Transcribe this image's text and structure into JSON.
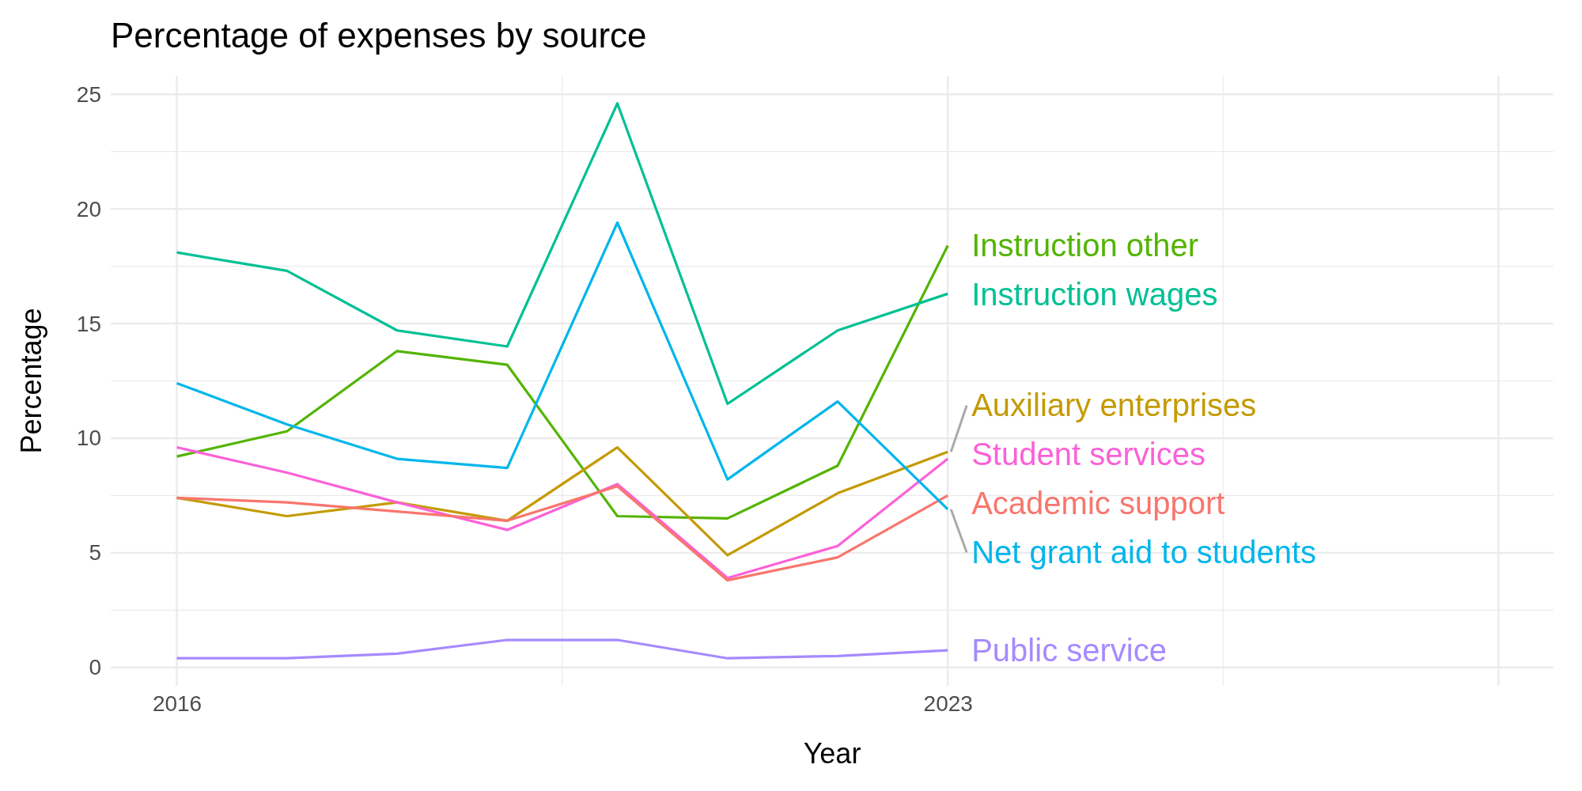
{
  "chart_data": {
    "type": "line",
    "title": "Percentage of expenses by source",
    "xlabel": "Year",
    "ylabel": "Percentage",
    "x": [
      2016,
      2017,
      2018,
      2019,
      2020,
      2021,
      2022,
      2023
    ],
    "series": [
      {
        "name": "Instruction other",
        "color": "#53b400",
        "values": [
          9.2,
          10.3,
          13.8,
          13.2,
          6.6,
          6.5,
          8.8,
          18.4
        ]
      },
      {
        "name": "Instruction wages",
        "color": "#00c094",
        "values": [
          18.1,
          17.3,
          14.7,
          14.0,
          24.6,
          11.5,
          14.7,
          16.3
        ]
      },
      {
        "name": "Auxiliary enterprises",
        "color": "#c49a00",
        "values": [
          7.4,
          6.6,
          7.2,
          6.4,
          9.6,
          4.9,
          7.6,
          9.4
        ]
      },
      {
        "name": "Student services",
        "color": "#fb61d7",
        "values": [
          9.6,
          8.5,
          7.2,
          6.0,
          8.0,
          3.9,
          5.3,
          9.1
        ]
      },
      {
        "name": "Academic support",
        "color": "#f8766d",
        "values": [
          7.4,
          7.2,
          6.8,
          6.4,
          7.9,
          3.8,
          4.8,
          7.5
        ]
      },
      {
        "name": "Net grant aid to students",
        "color": "#00b6eb",
        "values": [
          12.4,
          10.6,
          9.1,
          8.7,
          19.4,
          8.2,
          11.6,
          6.9
        ]
      },
      {
        "name": "Public service",
        "color": "#a58aff",
        "values": [
          0.4,
          0.4,
          0.6,
          1.2,
          1.2,
          0.4,
          0.5,
          0.75
        ]
      }
    ],
    "xlim": [
      2015.4,
      2028.5
    ],
    "xticks": [
      2016,
      {
        "value": 2019.5,
        "label": null
      },
      2023,
      {
        "value": 2025.5,
        "label": null
      },
      {
        "value": 2028,
        "label": null
      }
    ],
    "ylim": [
      -0.8,
      25.8
    ],
    "yticks": [
      0,
      {
        "value": 2.5,
        "label": null
      },
      5,
      {
        "value": 7.5,
        "label": null
      },
      10,
      {
        "value": 12.5,
        "label": null
      },
      15,
      {
        "value": 17.5,
        "label": null
      },
      20,
      {
        "value": 22.5,
        "label": null
      },
      25
    ],
    "grid": true,
    "line_style": "solid",
    "marker": "none"
  }
}
